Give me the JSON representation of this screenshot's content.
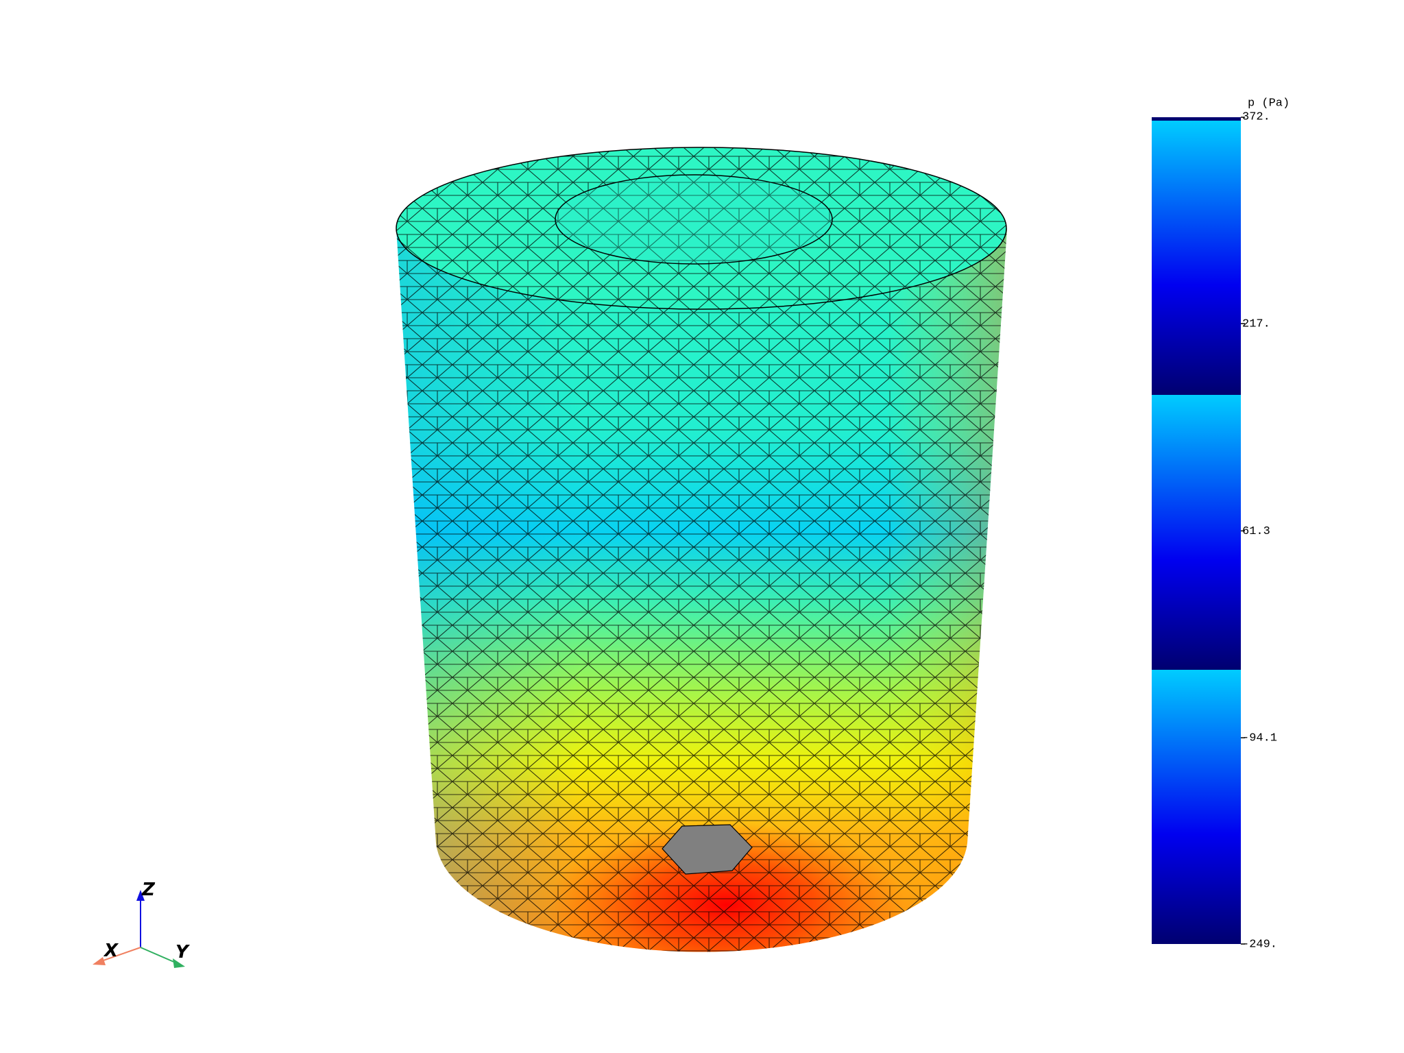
{
  "colorbar": {
    "title": "p (Pa)",
    "ticks": [
      {
        "value": 372,
        "label": "372."
      },
      {
        "value": 217,
        "label": "217."
      },
      61.3,
      -94.1,
      {
        "value": -249,
        "label": "-249."
      }
    ]
  },
  "axes": {
    "x": "X",
    "y": "Y",
    "z": "Z"
  }
}
